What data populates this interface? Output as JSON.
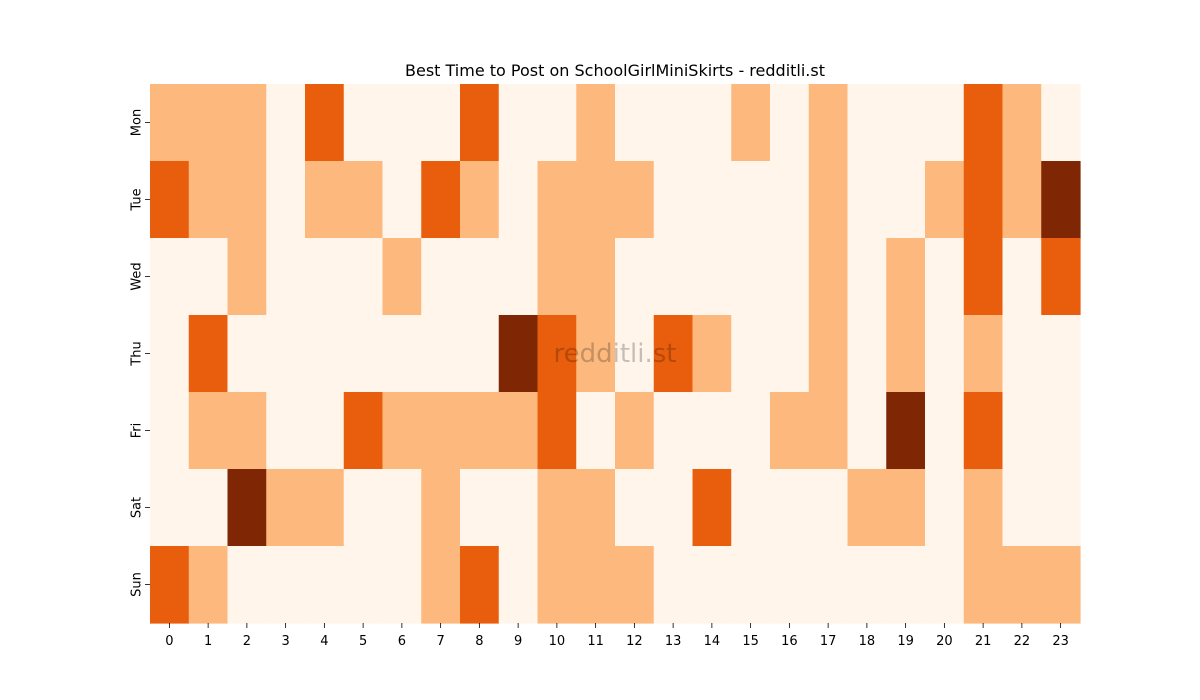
{
  "chart_data": {
    "type": "heatmap",
    "title": "Best Time to Post on SchoolGirlMiniSkirts - redditli.st",
    "watermark": "redditli.st",
    "xlabel": "",
    "ylabel": "",
    "x": [
      "0",
      "1",
      "2",
      "3",
      "4",
      "5",
      "6",
      "7",
      "8",
      "9",
      "10",
      "11",
      "12",
      "13",
      "14",
      "15",
      "16",
      "17",
      "18",
      "19",
      "20",
      "21",
      "22",
      "23"
    ],
    "y": [
      "Mon",
      "Tue",
      "Wed",
      "Thu",
      "Fri",
      "Sat",
      "Sun"
    ],
    "levels": 4,
    "values": [
      [
        1,
        1,
        1,
        0,
        2,
        0,
        0,
        0,
        2,
        0,
        0,
        1,
        0,
        0,
        0,
        1,
        0,
        1,
        0,
        0,
        0,
        2,
        1,
        0
      ],
      [
        2,
        1,
        1,
        0,
        1,
        1,
        0,
        2,
        1,
        0,
        1,
        1,
        1,
        0,
        0,
        0,
        0,
        1,
        0,
        0,
        1,
        2,
        1,
        3
      ],
      [
        0,
        0,
        1,
        0,
        0,
        0,
        1,
        0,
        0,
        0,
        1,
        1,
        0,
        0,
        0,
        0,
        0,
        1,
        0,
        1,
        0,
        2,
        0,
        2
      ],
      [
        0,
        2,
        0,
        0,
        0,
        0,
        0,
        0,
        0,
        3,
        2,
        1,
        0,
        2,
        1,
        0,
        0,
        1,
        0,
        1,
        0,
        1,
        0,
        0
      ],
      [
        0,
        1,
        1,
        0,
        0,
        2,
        1,
        1,
        1,
        1,
        2,
        0,
        1,
        0,
        0,
        0,
        1,
        1,
        0,
        3,
        0,
        2,
        0,
        0
      ],
      [
        0,
        0,
        3,
        1,
        1,
        0,
        0,
        1,
        0,
        0,
        1,
        1,
        0,
        0,
        2,
        0,
        0,
        0,
        1,
        1,
        0,
        1,
        0,
        0
      ],
      [
        2,
        1,
        0,
        0,
        0,
        0,
        0,
        1,
        2,
        0,
        1,
        1,
        1,
        0,
        0,
        0,
        0,
        0,
        0,
        0,
        0,
        1,
        1,
        1
      ]
    ],
    "colorscale": [
      "#fff5eb",
      "#fdb97d",
      "#e95e0d",
      "#7f2704"
    ],
    "colorbar": false,
    "grid": false
  }
}
